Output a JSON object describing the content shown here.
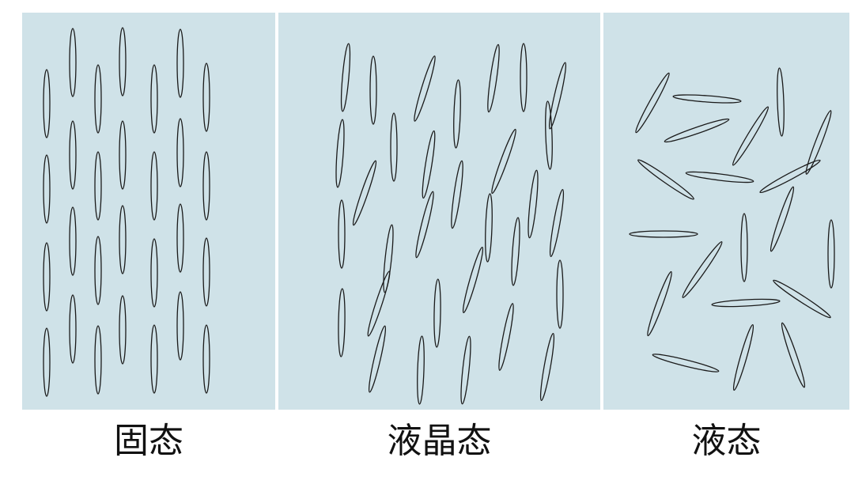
{
  "phases": [
    {
      "id": "solid",
      "label": "固态",
      "color": "#cfe2e8"
    },
    {
      "id": "liquid-crystal",
      "label": "液晶态",
      "color": "#cfe2e8"
    },
    {
      "id": "liquid",
      "label": "液态",
      "color": "#cfe2e8"
    }
  ]
}
